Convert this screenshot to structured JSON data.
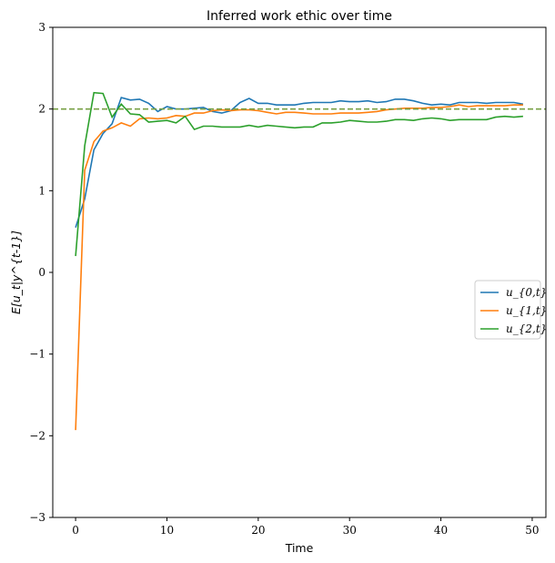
{
  "chart_data": {
    "type": "line",
    "title": "Inferred work ethic over time",
    "xlabel": "Time",
    "ylabel": "E[u_t|y^{t-1}]",
    "xlim": [
      -2.5,
      51.5
    ],
    "ylim": [
      -3,
      3
    ],
    "xticks": [
      0,
      10,
      20,
      30,
      40,
      50
    ],
    "yticks": [
      -3,
      -2,
      -1,
      0,
      1,
      2,
      3
    ],
    "ytick_labels": [
      "−3",
      "−2",
      "−1",
      "0",
      "1",
      "2",
      "3"
    ],
    "grid": false,
    "legend_placement": "center-right",
    "reference_line": {
      "y": 2,
      "style": "dashed",
      "color": "#77a044"
    },
    "series": [
      {
        "name": "u_{0,t}",
        "color": "#1f77b4",
        "values": [
          0.55,
          0.9,
          1.5,
          1.7,
          1.82,
          2.14,
          2.11,
          2.12,
          2.07,
          1.97,
          2.03,
          2.0,
          2.0,
          2.01,
          2.02,
          1.97,
          1.95,
          1.98,
          2.08,
          2.13,
          2.07,
          2.07,
          2.05,
          2.05,
          2.05,
          2.07,
          2.08,
          2.08,
          2.08,
          2.1,
          2.09,
          2.09,
          2.1,
          2.08,
          2.09,
          2.12,
          2.12,
          2.1,
          2.07,
          2.05,
          2.06,
          2.05,
          2.08,
          2.08,
          2.08,
          2.07,
          2.08,
          2.08,
          2.08,
          2.06
        ]
      },
      {
        "name": "u_{1,t}",
        "color": "#ff7f0e",
        "values": [
          -1.93,
          1.25,
          1.6,
          1.73,
          1.77,
          1.83,
          1.79,
          1.88,
          1.89,
          1.88,
          1.89,
          1.92,
          1.91,
          1.95,
          1.95,
          1.98,
          1.99,
          1.98,
          1.99,
          1.99,
          1.98,
          1.96,
          1.94,
          1.96,
          1.96,
          1.95,
          1.94,
          1.94,
          1.94,
          1.95,
          1.95,
          1.95,
          1.96,
          1.97,
          1.99,
          2.0,
          2.01,
          2.01,
          2.01,
          2.02,
          2.02,
          2.03,
          2.05,
          2.03,
          2.04,
          2.04,
          2.04,
          2.04,
          2.05,
          2.05
        ]
      },
      {
        "name": "u_{2,t}",
        "color": "#2ca02c",
        "values": [
          0.2,
          1.55,
          2.2,
          2.19,
          1.9,
          2.06,
          1.94,
          1.93,
          1.84,
          1.85,
          1.86,
          1.83,
          1.91,
          1.75,
          1.79,
          1.79,
          1.78,
          1.78,
          1.78,
          1.8,
          1.78,
          1.8,
          1.79,
          1.78,
          1.77,
          1.78,
          1.78,
          1.83,
          1.83,
          1.84,
          1.86,
          1.85,
          1.84,
          1.84,
          1.85,
          1.87,
          1.87,
          1.86,
          1.88,
          1.89,
          1.88,
          1.86,
          1.87,
          1.87,
          1.87,
          1.87,
          1.9,
          1.91,
          1.9,
          1.91
        ]
      }
    ]
  }
}
